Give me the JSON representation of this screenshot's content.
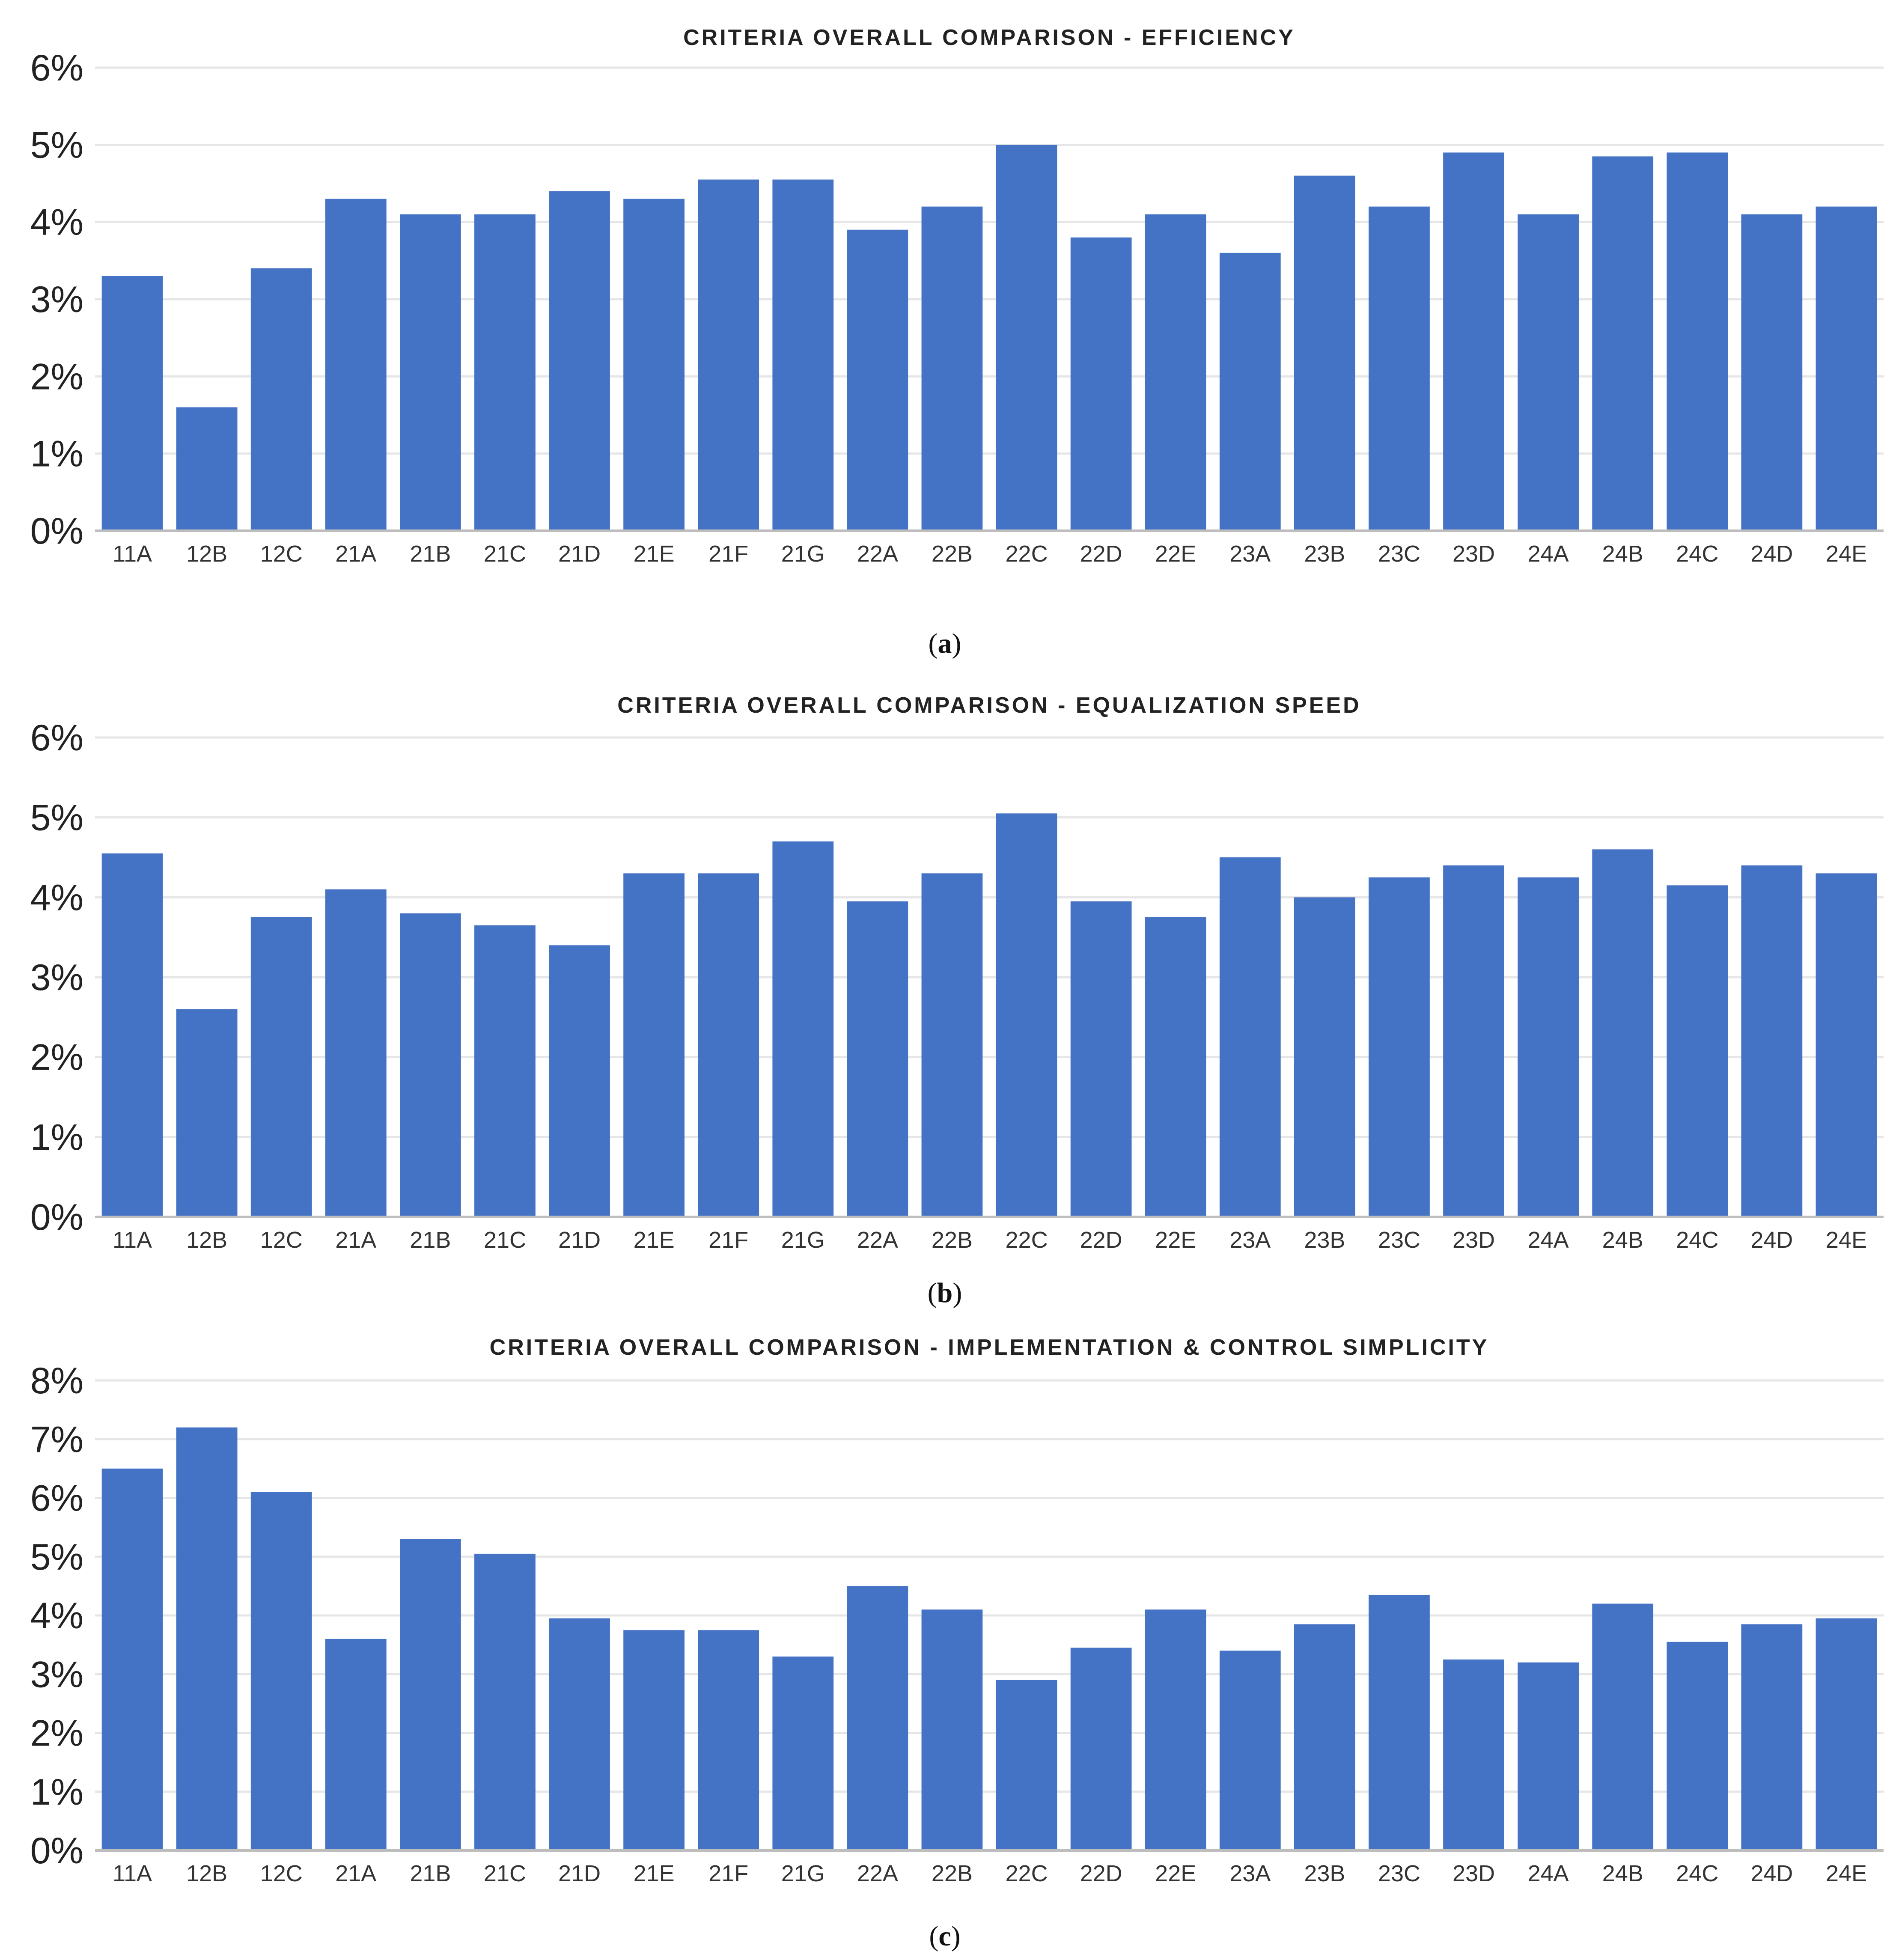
{
  "chart_data": [
    {
      "type": "bar",
      "title": "CRITERIA OVERALL COMPARISON - EFFICIENCY",
      "caption_letter": "a",
      "categories": [
        "11A",
        "12B",
        "12C",
        "21A",
        "21B",
        "21C",
        "21D",
        "21E",
        "21F",
        "21G",
        "22A",
        "22B",
        "22C",
        "22D",
        "22E",
        "23A",
        "23B",
        "23C",
        "23D",
        "24A",
        "24B",
        "24C",
        "24D",
        "24E"
      ],
      "values": [
        3.3,
        1.6,
        3.4,
        4.3,
        4.1,
        4.1,
        4.4,
        4.3,
        4.55,
        4.55,
        3.9,
        4.2,
        5.0,
        3.8,
        4.1,
        3.6,
        4.6,
        4.2,
        4.9,
        4.1,
        4.85,
        4.9,
        4.1,
        4.2
      ],
      "yticks": [
        "0%",
        "1%",
        "2%",
        "3%",
        "4%",
        "5%",
        "6%"
      ],
      "ylim": [
        0,
        6
      ],
      "color": "#4472c4"
    },
    {
      "type": "bar",
      "title": "CRITERIA OVERALL COMPARISON - EQUALIZATION SPEED",
      "caption_letter": "b",
      "categories": [
        "11A",
        "12B",
        "12C",
        "21A",
        "21B",
        "21C",
        "21D",
        "21E",
        "21F",
        "21G",
        "22A",
        "22B",
        "22C",
        "22D",
        "22E",
        "23A",
        "23B",
        "23C",
        "23D",
        "24A",
        "24B",
        "24C",
        "24D",
        "24E"
      ],
      "values": [
        4.55,
        2.6,
        3.75,
        4.1,
        3.8,
        3.65,
        3.4,
        4.3,
        4.3,
        4.7,
        3.95,
        4.3,
        5.05,
        3.95,
        3.75,
        4.5,
        4.0,
        4.25,
        4.4,
        4.25,
        4.6,
        4.15,
        4.4,
        4.3
      ],
      "yticks": [
        "0%",
        "1%",
        "2%",
        "3%",
        "4%",
        "5%",
        "6%"
      ],
      "ylim": [
        0,
        6
      ],
      "color": "#4472c4"
    },
    {
      "type": "bar",
      "title": "CRITERIA OVERALL COMPARISON - IMPLEMENTATION & CONTROL SIMPLICITY",
      "caption_letter": "c",
      "categories": [
        "11A",
        "12B",
        "12C",
        "21A",
        "21B",
        "21C",
        "21D",
        "21E",
        "21F",
        "21G",
        "22A",
        "22B",
        "22C",
        "22D",
        "22E",
        "23A",
        "23B",
        "23C",
        "23D",
        "24A",
        "24B",
        "24C",
        "24D",
        "24E"
      ],
      "values": [
        6.5,
        7.2,
        6.1,
        3.6,
        5.3,
        5.05,
        3.95,
        3.75,
        3.75,
        3.3,
        4.5,
        4.1,
        2.9,
        3.45,
        4.1,
        3.4,
        3.85,
        4.35,
        3.25,
        3.2,
        4.2,
        3.55,
        3.85,
        3.95
      ],
      "yticks": [
        "0%",
        "1%",
        "2%",
        "3%",
        "4%",
        "5%",
        "6%",
        "7%",
        "8%"
      ],
      "ylim": [
        0,
        8
      ],
      "color": "#4472c4"
    }
  ]
}
